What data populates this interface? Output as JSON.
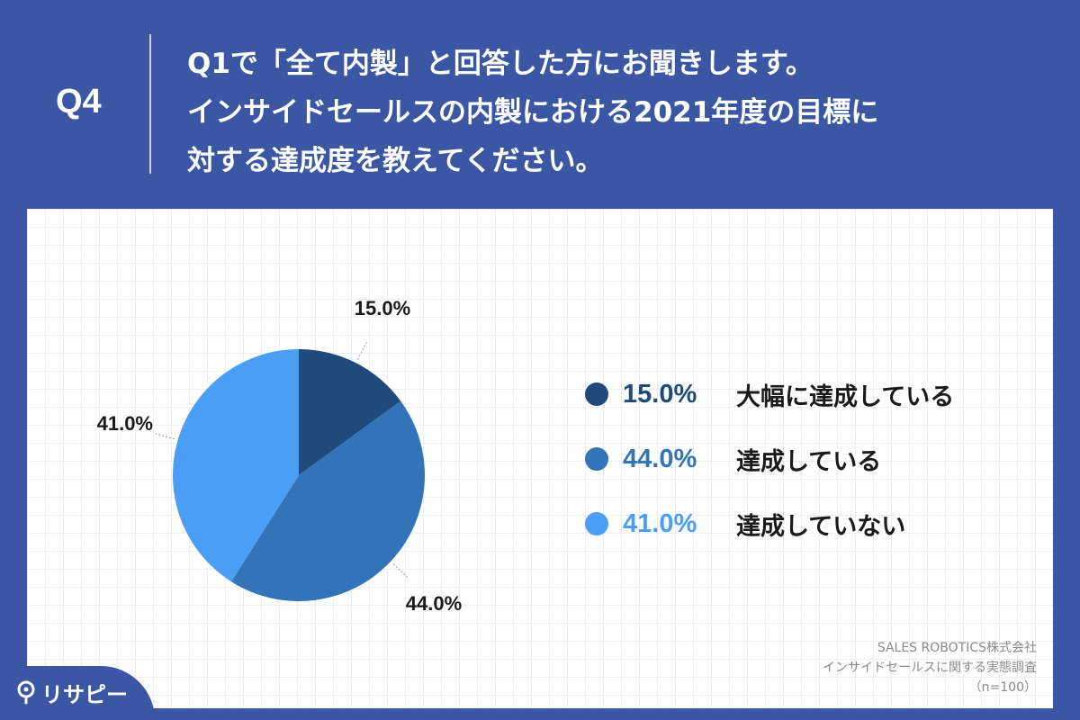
{
  "header": {
    "question_number": "Q4",
    "question_lines": [
      "Q1で「全て内製」と回答した方にお聞きします。",
      "インサイドセールスの内製における2021年度の目標に",
      "対する達成度を教えてください。"
    ]
  },
  "chart_data": {
    "type": "pie",
    "slices": [
      {
        "label": "大幅に達成している",
        "value": 15.0,
        "display": "15.0%",
        "color": "#1e4a7c"
      },
      {
        "label": "達成している",
        "value": 44.0,
        "display": "44.0%",
        "color": "#3373b8"
      },
      {
        "label": "達成していない",
        "value": 41.0,
        "display": "41.0%",
        "color": "#4a9ef5"
      }
    ]
  },
  "source": {
    "lines": [
      "SALES ROBOTICS株式会社",
      "インサイドセールスに関する実態調査",
      "（n=100）"
    ]
  },
  "logo": {
    "text": "リサピー",
    "icon": "pin-icon"
  }
}
